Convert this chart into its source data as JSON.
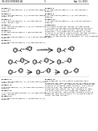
{
  "background_color": "#ffffff",
  "title_left": "US 2013/0090481 A1",
  "title_right": "Apr. 11, 2013",
  "page_number": "3",
  "top_left_text": [
    [
      "EXAMPLE 1",
      "bold"
    ],
    [
      "1-(3-4-difluorophenyl)-2-(2-phenylethylamino)-",
      "normal"
    ],
    [
      "ethanone",
      "normal"
    ],
    [
      "",
      "normal"
    ],
    [
      "EXAMPLE 2",
      "bold"
    ],
    [
      "1-(3-4-difluorophenyl)-2-(2-phenylethylamino)-",
      "normal"
    ],
    [
      "propan-1-one",
      "normal"
    ],
    [
      "",
      "normal"
    ],
    [
      "EXAMPLE 3",
      "bold"
    ],
    [
      "1-(3-4-difluorophenyl)-2-((2-phenylethyl)-",
      "normal"
    ],
    [
      "amino)-butan-1-one",
      "normal"
    ],
    [
      "",
      "normal"
    ],
    [
      "EXAMPLE 4",
      "bold"
    ],
    [
      "2-((2-phenylethyl)amino)-1-(3,4,5-trimethoxy-",
      "normal"
    ],
    [
      "phenyl)ethanone",
      "normal"
    ],
    [
      "",
      "normal"
    ],
    [
      "EXAMPLE 5",
      "bold"
    ],
    [
      "2-((2-phenylethyl)amino)-1-phenylethanone",
      "normal"
    ],
    [
      "",
      "normal"
    ],
    [
      "EXAMPLE 6",
      "bold"
    ],
    [
      "2-((2-phenylethyl)amino)-1-(3,4-dichlorophenyl)-",
      "normal"
    ],
    [
      "ethanone",
      "normal"
    ],
    [
      "",
      "normal"
    ],
    [
      "EXAMPLE 7",
      "bold"
    ],
    [
      "2-((2-phenylethyl)amino)-1-(4-methoxyphenyl)-",
      "normal"
    ],
    [
      "ethanone",
      "normal"
    ]
  ],
  "top_right_text": [
    [
      "EXAMPLE 8",
      "bold"
    ],
    [
      "2-((2-phenylethyl)amino)-1-(4-fluorophenyl)-",
      "normal"
    ],
    [
      "ethanone",
      "normal"
    ],
    [
      "",
      "normal"
    ],
    [
      "EXAMPLE 9",
      "bold"
    ],
    [
      "2-((2-phenylethyl)amino)-1-(4-chlorophenyl)-",
      "normal"
    ],
    [
      "ethanone",
      "normal"
    ],
    [
      "",
      "normal"
    ],
    [
      "EXAMPLE 10",
      "bold"
    ],
    [
      "2-((2-phenylethyl)amino)-1-(3,4-difluorophenyl)-",
      "normal"
    ],
    [
      "ethanone",
      "normal"
    ],
    [
      "",
      "normal"
    ],
    [
      "DESCRIPTION",
      "bold"
    ],
    [
      "The present invention relates to substituted",
      "normal"
    ],
    [
      "2-[2-(phenyl)ethylamino]alkaneamide derivatives",
      "normal"
    ],
    [
      "and their use as sodium and/or calcium channel",
      "normal"
    ],
    [
      "modulators. The compounds of formula (I) show",
      "normal"
    ],
    [
      "activity in blocking sodium and/or calcium channels.",
      "normal"
    ],
    [
      "The compounds can be used as pharmaceutical",
      "normal"
    ],
    [
      "agents, in particular as analgesics for the treatment",
      "normal"
    ],
    [
      "of pain.",
      "normal"
    ]
  ],
  "has_structures": true,
  "has_bottom_text": true,
  "bottom_left_text": [
    [
      "EXAMPLE 11",
      "bold"
    ],
    [
      "1-(3,4-difluorophenyl)-2-((2-phenylethyl)amino)-",
      "normal"
    ],
    [
      "propan-1-one",
      "normal"
    ],
    [
      "",
      "normal"
    ],
    [
      "EXAMPLE 12",
      "bold"
    ],
    [
      "1-(3-chlorophenyl)-2-((2-phenylethyl)amino)-",
      "normal"
    ],
    [
      "ethanone",
      "normal"
    ],
    [
      "",
      "normal"
    ],
    [
      "EXAMPLE 13",
      "bold"
    ],
    [
      "1-(4-trifluoromethylphenyl)-2-((2-phenylethyl)-",
      "normal"
    ],
    [
      "amino)-ethanone",
      "normal"
    ],
    [
      "",
      "normal"
    ],
    [
      "EXAMPLE 14",
      "bold"
    ],
    [
      "2-((2-phenylethyl)amino)-1-(naphthalen-2-yl)-",
      "normal"
    ],
    [
      "ethanone",
      "normal"
    ]
  ],
  "bottom_right_text": [
    [
      "EXAMPLE 15",
      "bold"
    ],
    [
      "The compounds of the present invention were",
      "normal"
    ],
    [
      "evaluated for their ability to block sodium and/or",
      "normal"
    ],
    [
      "calcium channels. The compounds showed significant",
      "normal"
    ],
    [
      "activity in blocking these channels. The results",
      "normal"
    ],
    [
      "indicate that the compounds can be used as",
      "normal"
    ],
    [
      "pharmaceutical agents for the treatment of pain.",
      "normal"
    ],
    [
      "The IC50 values for the compounds ranged from",
      "normal"
    ],
    [
      "0.1 to 10 microM. These values indicate that the",
      "normal"
    ],
    [
      "compounds have good potency for blocking sodium",
      "normal"
    ],
    [
      "and/or calcium channels.",
      "normal"
    ]
  ]
}
